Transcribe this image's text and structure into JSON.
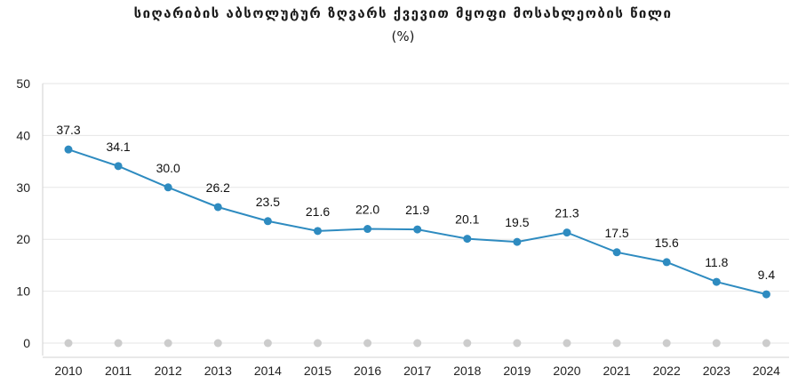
{
  "chart_data": {
    "type": "line",
    "title": "სიღარიბის აბსოლუტურ ზღვარს ქვევით მყოფი მოსახლეობის წილი",
    "subtitle": "(%)",
    "categories": [
      "2010",
      "2011",
      "2012",
      "2013",
      "2014",
      "2015",
      "2016",
      "2017",
      "2018",
      "2019",
      "2020",
      "2021",
      "2022",
      "2023",
      "2024"
    ],
    "series": [
      {
        "values": [
          37.3,
          34.1,
          30.0,
          26.2,
          23.5,
          21.6,
          22.0,
          21.9,
          20.1,
          19.5,
          21.3,
          17.5,
          15.6,
          11.8,
          9.4
        ]
      }
    ],
    "data_labels": [
      "37.3",
      "34.1",
      "30.0",
      "26.2",
      "23.5",
      "21.6",
      "22.0",
      "21.9",
      "20.1",
      "19.5",
      "21.3",
      "17.5",
      "15.6",
      "11.8",
      "9.4"
    ],
    "yticks": [
      "0",
      "10",
      "20",
      "30",
      "40",
      "50"
    ],
    "ylim": [
      0,
      50
    ],
    "grid": true,
    "colors": {
      "line": "#2e8bc0",
      "baseline_marker": "#cccccc",
      "grid": "#e6e6e6"
    }
  }
}
